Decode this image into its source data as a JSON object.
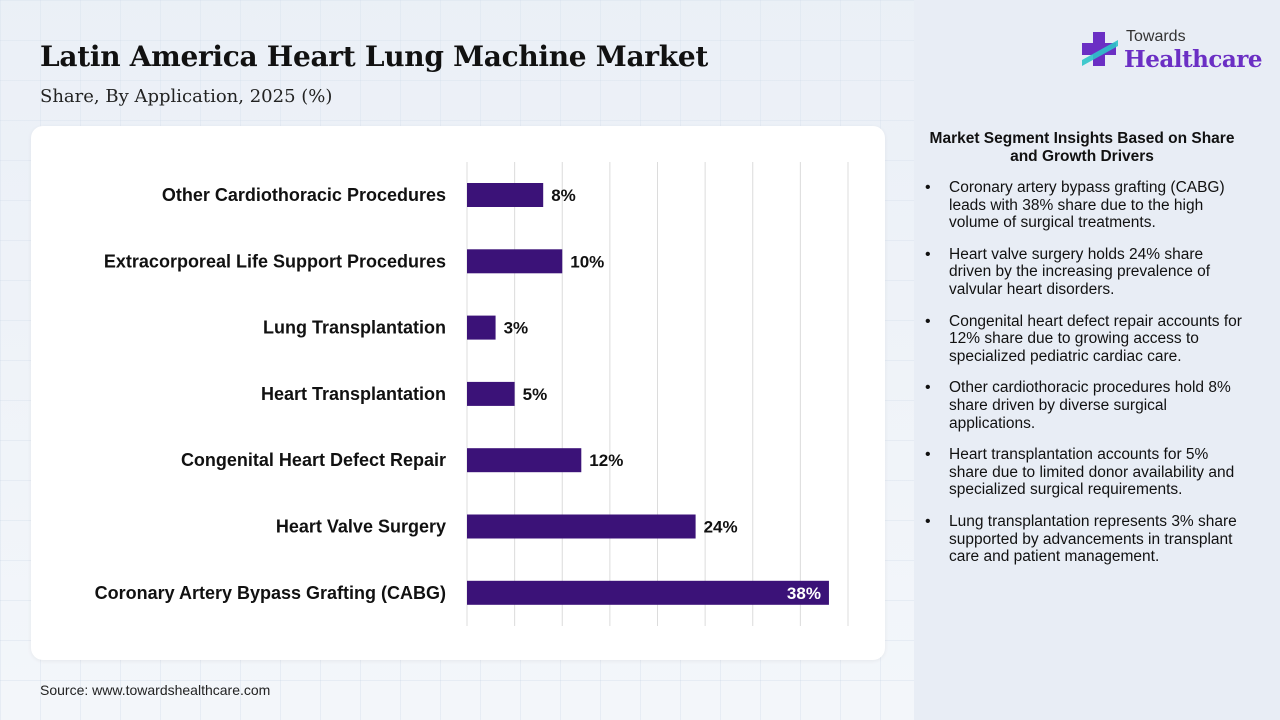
{
  "header": {
    "title": "Latin America Heart Lung Machine Market",
    "subtitle": "Share, By Application, 2025 (%)"
  },
  "source": "Source: www.towardshealthcare.com",
  "logo": {
    "line1": "Towards",
    "line2": "Healthcare",
    "icon": "cross-plus-icon"
  },
  "colors": {
    "bar": "#3b1278",
    "brand": "#6b2fc4"
  },
  "insights": {
    "title": "Market Segment Insights Based on Share and Growth Drivers",
    "items": [
      "Coronary artery bypass grafting (CABG) leads with 38% share due to the high volume of surgical treatments.",
      "Heart valve surgery holds 24% share driven by the increasing prevalence of valvular heart disorders.",
      "Congenital heart defect repair accounts for 12% share due to growing access to specialized pediatric cardiac care.",
      "Other cardiothoracic procedures hold 8% share driven by diverse surgical applications.",
      "Heart transplantation accounts for 5% share due to limited donor availability and specialized surgical requirements.",
      "Lung transplantation represents 3% share supported by advancements in transplant care and patient management."
    ]
  },
  "chart_data": {
    "type": "bar",
    "orientation": "horizontal",
    "categories": [
      "Other Cardiothoracic Procedures",
      "Extracorporeal Life Support Procedures",
      "Lung Transplantation",
      "Heart Transplantation",
      "Congenital Heart Defect Repair",
      "Heart Valve Surgery",
      "Coronary Artery Bypass Grafting (CABG)"
    ],
    "values": [
      8,
      10,
      3,
      5,
      12,
      24,
      38
    ],
    "labels": [
      "8%",
      "10%",
      "3%",
      "5%",
      "12%",
      "24%",
      "38%"
    ],
    "xlim": [
      0,
      40
    ],
    "grid": true,
    "legend": "none"
  }
}
